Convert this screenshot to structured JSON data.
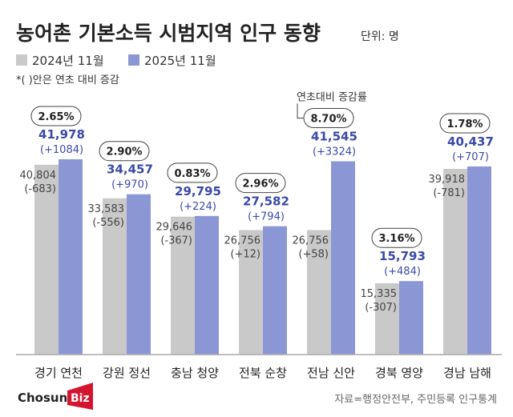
{
  "chart_data": {
    "type": "bar",
    "title": "농어촌 기본소득 시범지역 인구 동향",
    "unit": "단위: 명",
    "note": "*(  )안은 연초 대비 증감",
    "annotation": "연초대비 증감률",
    "categories": [
      "경기 연천",
      "강원 정선",
      "충남 청양",
      "전북 순창",
      "전남 신안",
      "경북 영양",
      "경남 남해"
    ],
    "series": [
      {
        "name": "2024년 11월",
        "color": "#c9c9c9",
        "values": [
          40804,
          33583,
          29646,
          26756,
          26756,
          15335,
          39918
        ],
        "labels": [
          "40,804",
          "33,583",
          "29,646",
          "26,756",
          "26,756",
          "15,335",
          "39,918"
        ],
        "changes": [
          "(-683)",
          "(-556)",
          "(-367)",
          "(+12)",
          "(+58)",
          "(-307)",
          "(-781)"
        ]
      },
      {
        "name": "2025년 11월",
        "color": "#8b97d5",
        "values": [
          41978,
          34457,
          29795,
          27582,
          41545,
          15793,
          40437
        ],
        "labels": [
          "41,978",
          "34,457",
          "29,795",
          "27,582",
          "41,545",
          "15,793",
          "40,437"
        ],
        "changes": [
          "(+1084)",
          "(+970)",
          "(+224)",
          "(+794)",
          "(+3324)",
          "(+484)",
          "(+707)"
        ]
      }
    ],
    "growth_rates": [
      "2.65%",
      "2.90%",
      "0.83%",
      "2.96%",
      "8.70%",
      "3.16%",
      "1.78%"
    ],
    "ylim": [
      0,
      45000
    ],
    "grid": false,
    "legend_placement": "top-left"
  },
  "source": "자료=행정안전부, 주민등록 인구통계",
  "logo": "ChosunBiz"
}
